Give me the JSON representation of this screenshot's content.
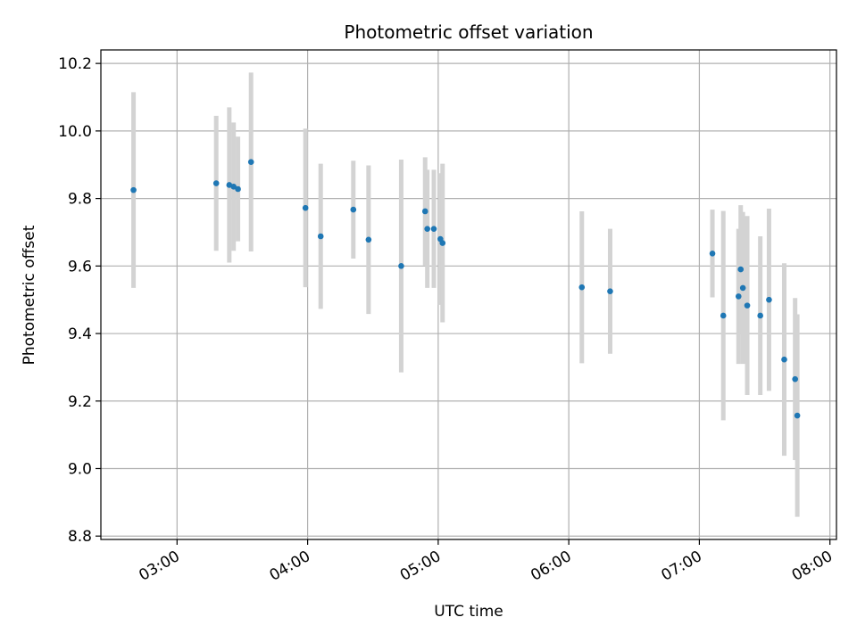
{
  "chart_data": {
    "type": "scatter",
    "title": "Photometric offset variation",
    "xlabel": "UTC time",
    "ylabel": "Photometric offset",
    "x_is_time": true,
    "xlim": [
      "02:25",
      "08:03"
    ],
    "ylim": [
      8.79,
      10.24
    ],
    "xticks": [
      "03:00",
      "04:00",
      "05:00",
      "06:00",
      "07:00",
      "08:00"
    ],
    "yticks": [
      8.8,
      9.0,
      9.2,
      9.4,
      9.6,
      9.8,
      10.0,
      10.2
    ],
    "ytick_labels": [
      "8.8",
      "9.0",
      "9.2",
      "9.4",
      "9.6",
      "9.8",
      "10.0",
      "10.2"
    ],
    "grid": true,
    "point_color": "#1f77b4",
    "errorbar_color": "#d3d3d3",
    "points": [
      {
        "x": "02:40",
        "y": 9.825,
        "err": 0.29
      },
      {
        "x": "03:18",
        "y": 9.845,
        "err": 0.2
      },
      {
        "x": "03:24",
        "y": 9.84,
        "err": 0.23
      },
      {
        "x": "03:26",
        "y": 9.835,
        "err": 0.19
      },
      {
        "x": "03:28",
        "y": 9.828,
        "err": 0.155
      },
      {
        "x": "03:34",
        "y": 9.908,
        "err": 0.265
      },
      {
        "x": "03:59",
        "y": 9.772,
        "err": 0.235
      },
      {
        "x": "04:06",
        "y": 9.688,
        "err": 0.215
      },
      {
        "x": "04:21",
        "y": 9.767,
        "err": 0.145
      },
      {
        "x": "04:28",
        "y": 9.678,
        "err": 0.22
      },
      {
        "x": "04:43",
        "y": 9.6,
        "err": 0.315
      },
      {
        "x": "04:54",
        "y": 9.762,
        "err": 0.16
      },
      {
        "x": "04:55",
        "y": 9.71,
        "err": 0.175
      },
      {
        "x": "04:58",
        "y": 9.71,
        "err": 0.175
      },
      {
        "x": "05:01",
        "y": 9.68,
        "err": 0.195
      },
      {
        "x": "05:02",
        "y": 9.668,
        "err": 0.235
      },
      {
        "x": "06:06",
        "y": 9.537,
        "err": 0.225
      },
      {
        "x": "06:19",
        "y": 9.525,
        "err": 0.185
      },
      {
        "x": "07:06",
        "y": 9.637,
        "err": 0.13
      },
      {
        "x": "07:11",
        "y": 9.453,
        "err": 0.31
      },
      {
        "x": "07:18",
        "y": 9.51,
        "err": 0.2
      },
      {
        "x": "07:19",
        "y": 9.59,
        "err": 0.19
      },
      {
        "x": "07:20",
        "y": 9.535,
        "err": 0.225
      },
      {
        "x": "07:22",
        "y": 9.483,
        "err": 0.265
      },
      {
        "x": "07:28",
        "y": 9.453,
        "err": 0.235
      },
      {
        "x": "07:32",
        "y": 9.5,
        "err": 0.27
      },
      {
        "x": "07:39",
        "y": 9.323,
        "err": 0.285
      },
      {
        "x": "07:44",
        "y": 9.265,
        "err": 0.24
      },
      {
        "x": "07:45",
        "y": 9.157,
        "err": 0.3
      }
    ]
  }
}
